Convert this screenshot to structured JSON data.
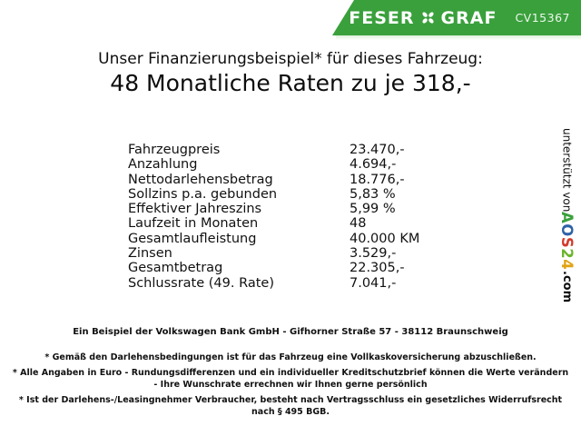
{
  "header": {
    "logo": {
      "left": "FESER",
      "right": "GRAF"
    },
    "code": "CV15367"
  },
  "title": {
    "line1": "Unser Finanzierungsbeispiel* für dieses Fahrzeug:",
    "line2": "48 Monatliche Raten zu je 318,-"
  },
  "finance_table": {
    "rows": [
      {
        "label": "Fahrzeugpreis",
        "value": "23.470,-"
      },
      {
        "label": "Anzahlung",
        "value": "4.694,-"
      },
      {
        "label": "Nettodarlehensbetrag",
        "value": "18.776,-"
      },
      {
        "label": "Sollzins p.a. gebunden",
        "value": "5,83 %"
      },
      {
        "label": "Effektiver Jahreszins",
        "value": "5,99 %"
      },
      {
        "label": "Laufzeit in Monaten",
        "value": "48"
      },
      {
        "label": "Gesamtlaufleistung",
        "value": "40.000 KM"
      },
      {
        "label": "Zinsen",
        "value": "3.529,-"
      },
      {
        "label": "Gesamtbetrag",
        "value": "22.305,-"
      },
      {
        "label": "Schlussrate (49. Rate)",
        "value": "7.041,-"
      }
    ]
  },
  "sidebar": {
    "prefix": "unterstützt von ",
    "brand_letters": [
      {
        "char": "A",
        "color": "#3aa03c"
      },
      {
        "char": "O",
        "color": "#2e62a8"
      },
      {
        "char": "S",
        "color": "#d43a2c"
      },
      {
        "char": "2",
        "color": "#6cb52d"
      },
      {
        "char": "4",
        "color": "#e0a313"
      }
    ],
    "suffix": ".com"
  },
  "footer": {
    "bank_line": "Ein Beispiel der Volkswagen Bank GmbH - Gifhorner Straße 57 - 38112 Braunschweig",
    "footnotes": [
      "* Gemäß den Darlehensbedingungen ist für das Fahrzeug eine Vollkaskoversicherung abzuschließen.",
      "* Alle Angaben in Euro - Rundungsdifferenzen und ein individueller Kreditschutzbrief können die Werte verändern\n- Ihre Wunschrate errechnen wir Ihnen gerne persönlich",
      "* Ist der Darlehens-/Leasingnehmer Verbraucher, besteht nach Vertragsschluss ein gesetzliches Widerrufsrecht\nnach § 495 BGB."
    ]
  },
  "colors": {
    "banner_green": "#3aa03c",
    "text": "#111111"
  }
}
